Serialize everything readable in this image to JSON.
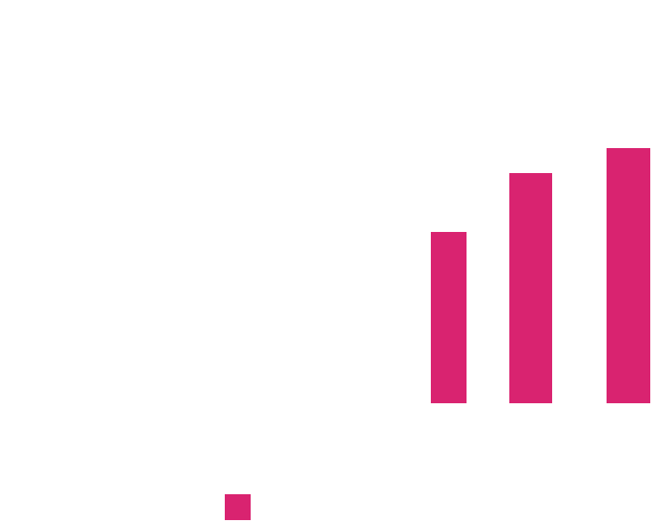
{
  "colors": {
    "background": "#ffffff",
    "bar": "#d92370"
  },
  "chart_data": {
    "type": "bar",
    "categories": [
      "",
      "",
      ""
    ],
    "series": [
      {
        "values": [
          192,
          258,
          286
        ]
      }
    ],
    "ylim": [
      0,
      286
    ],
    "grid": false,
    "legend": "bottom-left",
    "title": "",
    "xlabel": "",
    "ylabel": ""
  }
}
